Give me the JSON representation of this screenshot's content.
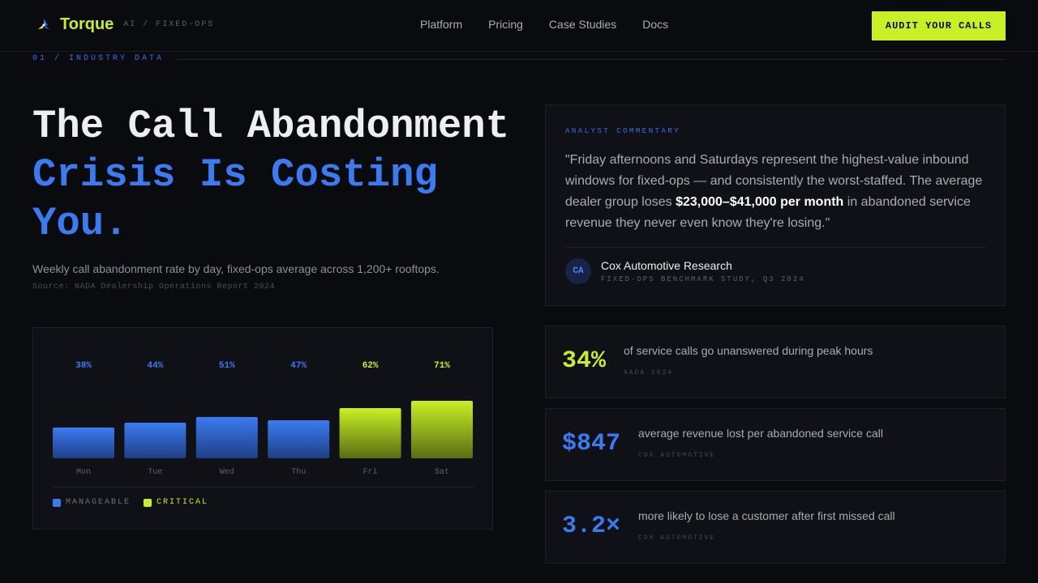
{
  "nav": {
    "brand": "Torque",
    "tagline": "AI / FIXED-OPS",
    "links": [
      "Platform",
      "Pricing",
      "Case Studies",
      "Docs"
    ],
    "cta": "AUDIT YOUR CALLS",
    "logo_icon": "torque-logo-icon"
  },
  "section": {
    "label": "01 / INDUSTRY DATA"
  },
  "hero": {
    "line1": "The Call Abandonment",
    "line2": "Crisis Is Costing",
    "line3": "You.",
    "subtitle": "Weekly call abandonment rate by day, fixed-ops average across 1,200+ rooftops.",
    "source": "Source: NADA Dealership Operations Report 2024"
  },
  "chart_data": {
    "type": "bar",
    "categories": [
      "Mon",
      "Tue",
      "Wed",
      "Thu",
      "Fri",
      "Sat"
    ],
    "values": [
      38,
      44,
      51,
      47,
      62,
      71
    ],
    "value_labels": [
      "38%",
      "44%",
      "51%",
      "47%",
      "62%",
      "71%"
    ],
    "status": [
      "manageable",
      "manageable",
      "manageable",
      "manageable",
      "critical",
      "critical"
    ],
    "ylim": [
      0,
      100
    ],
    "legend": [
      {
        "label": "MANAGEABLE",
        "color": "#3b7bf2"
      },
      {
        "label": "CRITICAL",
        "color": "#c8f024"
      }
    ],
    "legend_placement": "bottom-left",
    "grid": false,
    "title": "",
    "xlabel": "",
    "ylabel": ""
  },
  "quote": {
    "label": "ANALYST COMMENTARY",
    "text_before": "\"Friday afternoons and Saturdays represent the highest-value inbound windows for fixed-ops — and consistently the worst-staffed. The average dealer group loses ",
    "text_bold": "$23,000–$41,000 per month",
    "text_after": " in abandoned service revenue they never even know they're losing.\"",
    "avatar": "CA",
    "author": "Cox Automotive Research",
    "meta": "FIXED-OPS BENCHMARK STUDY, Q3 2024"
  },
  "stats": [
    {
      "value": "34%",
      "desc": "of service calls go unanswered during peak hours",
      "source": "NADA 2024",
      "color": "#c8f024"
    },
    {
      "value": "$847",
      "desc": "average revenue lost per abandoned service call",
      "source": "COX AUTOMOTIVE",
      "color": "#3b7bf2"
    },
    {
      "value": "3.2×",
      "desc": "more likely to lose a customer after first missed call",
      "source": "COX AUTOMOTIVE",
      "color": "#3b7bf2"
    }
  ],
  "colors": {
    "accent_lime": "#c8f024",
    "accent_blue": "#3b7bf2",
    "background": "#0a0b0e",
    "panel": "#0f1116"
  }
}
